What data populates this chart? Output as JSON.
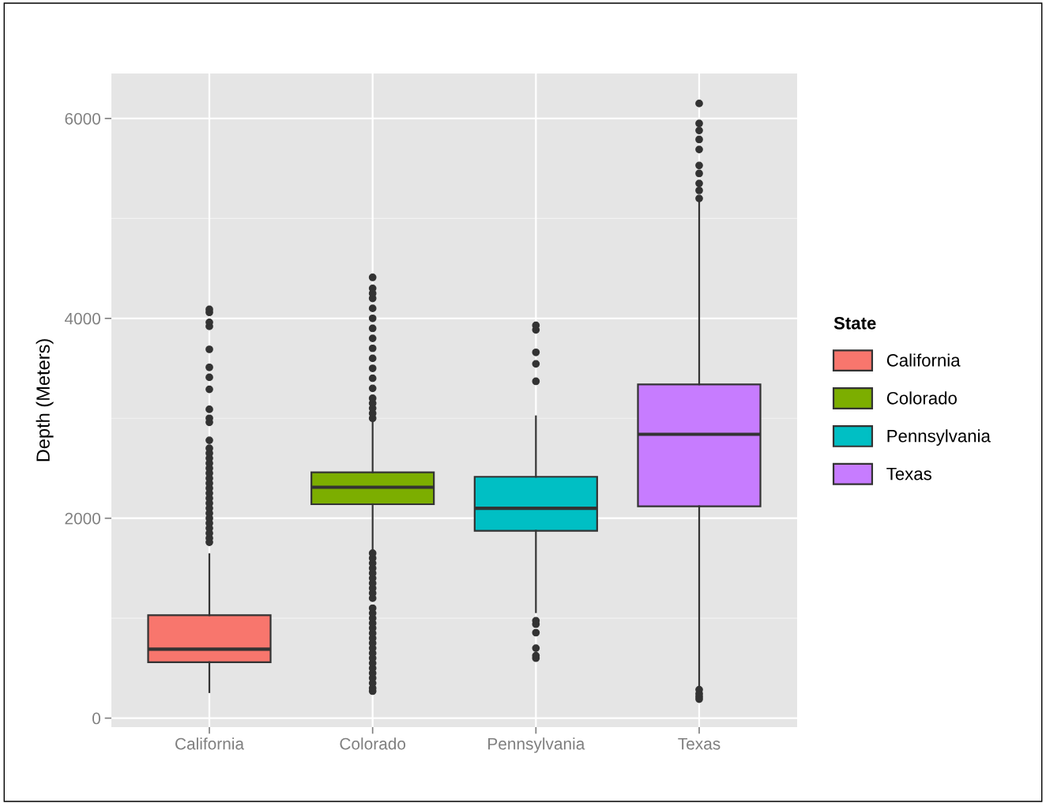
{
  "chart_data": {
    "type": "box",
    "ylabel": "Depth (Meters)",
    "legend_title": "State",
    "legend": "right",
    "grid": true,
    "categories": [
      "California",
      "Colorado",
      "Pennsylvania",
      "Texas"
    ],
    "ylim": [
      -90,
      6450
    ],
    "yticks": [
      0,
      2000,
      4000,
      6000
    ],
    "series": [
      {
        "name": "California",
        "color": "#f8766d",
        "boxes": [
          {
            "low": 260,
            "q1": 560,
            "median": 690,
            "q3": 1030,
            "high": 1640,
            "outliers": [
              1760,
              1800,
              1850,
              1900,
              1950,
              2000,
              2050,
              2100,
              2150,
              2200,
              2250,
              2300,
              2350,
              2400,
              2450,
              2500,
              2550,
              2600,
              2650,
              2700,
              2780,
              2960,
              3000,
              3090,
              3290,
              3410,
              3510,
              3690,
              3920,
              3960,
              4060,
              4090
            ]
          },
          null,
          null,
          null
        ]
      },
      {
        "name": "Colorado",
        "color": "#7cae00",
        "boxes": [
          null,
          {
            "low": 1670,
            "q1": 2140,
            "median": 2310,
            "q3": 2460,
            "high": 2960,
            "outliers": [
              270,
              300,
              350,
              400,
              450,
              500,
              550,
              600,
              650,
              700,
              750,
              800,
              850,
              900,
              950,
              1000,
              1050,
              1100,
              1200,
              1250,
              1300,
              1350,
              1400,
              1450,
              1500,
              1550,
              1600,
              1650,
              3000,
              3050,
              3100,
              3150,
              3200,
              3300,
              3400,
              3500,
              3600,
              3700,
              3800,
              3900,
              4000,
              4100,
              4200,
              4250,
              4300,
              4410
            ]
          },
          null,
          null
        ]
      },
      {
        "name": "Pennsylvania",
        "color": "#00bfc4",
        "boxes": [
          null,
          null,
          {
            "low": 1060,
            "q1": 1875,
            "median": 2100,
            "q3": 2415,
            "high": 3020,
            "outliers": [
              600,
              625,
              700,
              855,
              940,
              975,
              3370,
              3545,
              3660,
              3885,
              3930
            ]
          },
          null
        ]
      },
      {
        "name": "Texas",
        "color": "#c77cff",
        "boxes": [
          null,
          null,
          null,
          {
            "low": 300,
            "q1": 2120,
            "median": 2840,
            "q3": 3340,
            "high": 5190,
            "outliers": [
              190,
              215,
              245,
              285,
              5200,
              5280,
              5350,
              5450,
              5530,
              5690,
              5790,
              5880,
              5950,
              6150
            ]
          }
        ]
      }
    ]
  }
}
